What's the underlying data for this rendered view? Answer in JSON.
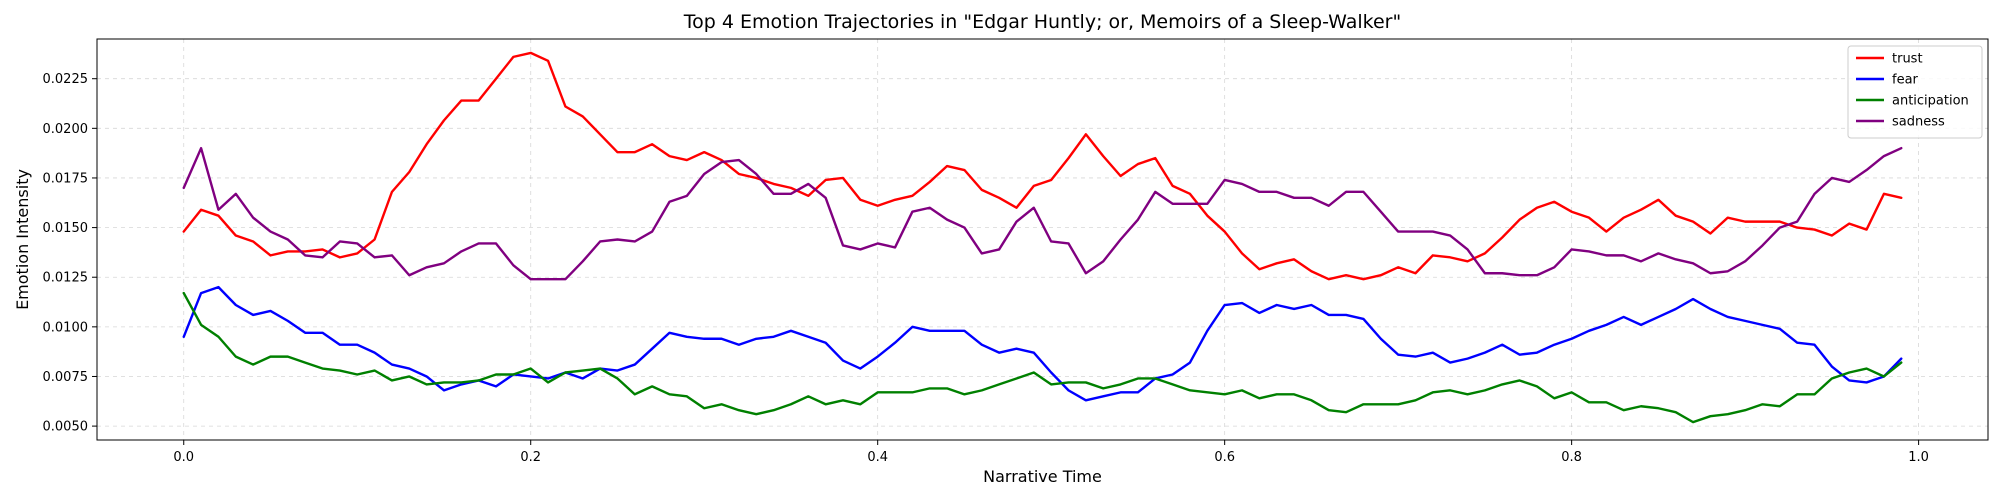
{
  "chart_data": {
    "type": "line",
    "title": "Top 4 Emotion Trajectories in \"Edgar Huntly; or, Memoirs of a Sleep-Walker\"",
    "xlabel": "Narrative Time",
    "ylabel": "Emotion Intensity",
    "xlim": [
      -0.05,
      1.04
    ],
    "ylim": [
      0.0043,
      0.0245
    ],
    "xticks": [
      0.0,
      0.2,
      0.4,
      0.6,
      0.8,
      1.0
    ],
    "xtick_labels": [
      "0.0",
      "0.2",
      "0.4",
      "0.6",
      "0.8",
      "1.0"
    ],
    "yticks": [
      0.005,
      0.0075,
      0.01,
      0.0125,
      0.015,
      0.0175,
      0.02,
      0.0225
    ],
    "ytick_labels": [
      "0.0050",
      "0.0075",
      "0.0100",
      "0.0125",
      "0.0150",
      "0.0175",
      "0.0200",
      "0.0225"
    ],
    "grid": true,
    "legend_position": "top-right",
    "x_start": 0.0,
    "x_step": 0.01,
    "series": [
      {
        "name": "trust",
        "color": "#ff0000",
        "values": [
          0.0148,
          0.0159,
          0.0156,
          0.0146,
          0.0143,
          0.0136,
          0.0138,
          0.0138,
          0.0139,
          0.0135,
          0.0137,
          0.0144,
          0.0168,
          0.0178,
          0.0192,
          0.0204,
          0.0214,
          0.0214,
          0.0225,
          0.0236,
          0.0238,
          0.0234,
          0.0211,
          0.0206,
          0.0197,
          0.0188,
          0.0188,
          0.0192,
          0.0186,
          0.0184,
          0.0188,
          0.0184,
          0.0177,
          0.0175,
          0.0172,
          0.017,
          0.0166,
          0.0174,
          0.0175,
          0.0164,
          0.0161,
          0.0164,
          0.0166,
          0.0173,
          0.0181,
          0.0179,
          0.0169,
          0.0165,
          0.016,
          0.0171,
          0.0174,
          0.0185,
          0.0197,
          0.0186,
          0.0176,
          0.0182,
          0.0185,
          0.0171,
          0.0167,
          0.0156,
          0.0148,
          0.0137,
          0.0129,
          0.0132,
          0.0134,
          0.0128,
          0.0124,
          0.0126,
          0.0124,
          0.0126,
          0.013,
          0.0127,
          0.0136,
          0.0135,
          0.0133,
          0.0137,
          0.0145,
          0.0154,
          0.016,
          0.0163,
          0.0158,
          0.0155,
          0.0148,
          0.0155,
          0.0159,
          0.0164,
          0.0156,
          0.0153,
          0.0147,
          0.0155,
          0.0153,
          0.0153,
          0.0153,
          0.015,
          0.0149,
          0.0146,
          0.0152,
          0.0149,
          0.0167,
          0.0165
        ]
      },
      {
        "name": "fear",
        "color": "#0000ff",
        "values": [
          0.0095,
          0.0117,
          0.012,
          0.0111,
          0.0106,
          0.0108,
          0.0103,
          0.0097,
          0.0097,
          0.0091,
          0.0091,
          0.0087,
          0.0081,
          0.0079,
          0.0075,
          0.0068,
          0.0071,
          0.0073,
          0.007,
          0.0076,
          0.0075,
          0.0074,
          0.0077,
          0.0074,
          0.0079,
          0.0078,
          0.0081,
          0.0089,
          0.0097,
          0.0095,
          0.0094,
          0.0094,
          0.0091,
          0.0094,
          0.0095,
          0.0098,
          0.0095,
          0.0092,
          0.0083,
          0.0079,
          0.0085,
          0.0092,
          0.01,
          0.0098,
          0.0098,
          0.0098,
          0.0091,
          0.0087,
          0.0089,
          0.0087,
          0.0077,
          0.0068,
          0.0063,
          0.0065,
          0.0067,
          0.0067,
          0.0074,
          0.0076,
          0.0082,
          0.0098,
          0.0111,
          0.0112,
          0.0107,
          0.0111,
          0.0109,
          0.0111,
          0.0106,
          0.0106,
          0.0104,
          0.0094,
          0.0086,
          0.0085,
          0.0087,
          0.0082,
          0.0084,
          0.0087,
          0.0091,
          0.0086,
          0.0087,
          0.0091,
          0.0094,
          0.0098,
          0.0101,
          0.0105,
          0.0101,
          0.0105,
          0.0109,
          0.0114,
          0.0109,
          0.0105,
          0.0103,
          0.0101,
          0.0099,
          0.0092,
          0.0091,
          0.008,
          0.0073,
          0.0072,
          0.0075,
          0.0084
        ]
      },
      {
        "name": "anticipation",
        "color": "#008000",
        "values": [
          0.0117,
          0.0101,
          0.0095,
          0.0085,
          0.0081,
          0.0085,
          0.0085,
          0.0082,
          0.0079,
          0.0078,
          0.0076,
          0.0078,
          0.0073,
          0.0075,
          0.0071,
          0.0072,
          0.0072,
          0.0073,
          0.0076,
          0.0076,
          0.0079,
          0.0072,
          0.0077,
          0.0078,
          0.0079,
          0.0074,
          0.0066,
          0.007,
          0.0066,
          0.0065,
          0.0059,
          0.0061,
          0.0058,
          0.0056,
          0.0058,
          0.0061,
          0.0065,
          0.0061,
          0.0063,
          0.0061,
          0.0067,
          0.0067,
          0.0067,
          0.0069,
          0.0069,
          0.0066,
          0.0068,
          0.0071,
          0.0074,
          0.0077,
          0.0071,
          0.0072,
          0.0072,
          0.0069,
          0.0071,
          0.0074,
          0.0074,
          0.0071,
          0.0068,
          0.0067,
          0.0066,
          0.0068,
          0.0064,
          0.0066,
          0.0066,
          0.0063,
          0.0058,
          0.0057,
          0.0061,
          0.0061,
          0.0061,
          0.0063,
          0.0067,
          0.0068,
          0.0066,
          0.0068,
          0.0071,
          0.0073,
          0.007,
          0.0064,
          0.0067,
          0.0062,
          0.0062,
          0.0058,
          0.006,
          0.0059,
          0.0057,
          0.0052,
          0.0055,
          0.0056,
          0.0058,
          0.0061,
          0.006,
          0.0066,
          0.0066,
          0.0074,
          0.0077,
          0.0079,
          0.0075,
          0.0082
        ]
      },
      {
        "name": "sadness",
        "color": "#800080",
        "values": [
          0.017,
          0.019,
          0.0159,
          0.0167,
          0.0155,
          0.0148,
          0.0144,
          0.0136,
          0.0135,
          0.0143,
          0.0142,
          0.0135,
          0.0136,
          0.0126,
          0.013,
          0.0132,
          0.0138,
          0.0142,
          0.0142,
          0.0131,
          0.0124,
          0.0124,
          0.0124,
          0.0133,
          0.0143,
          0.0144,
          0.0143,
          0.0148,
          0.0163,
          0.0166,
          0.0177,
          0.0183,
          0.0184,
          0.0177,
          0.0167,
          0.0167,
          0.0172,
          0.0165,
          0.0141,
          0.0139,
          0.0142,
          0.014,
          0.0158,
          0.016,
          0.0154,
          0.015,
          0.0137,
          0.0139,
          0.0153,
          0.016,
          0.0143,
          0.0142,
          0.0127,
          0.0133,
          0.0144,
          0.0154,
          0.0168,
          0.0162,
          0.0162,
          0.0162,
          0.0174,
          0.0172,
          0.0168,
          0.0168,
          0.0165,
          0.0165,
          0.0161,
          0.0168,
          0.0168,
          0.0158,
          0.0148,
          0.0148,
          0.0148,
          0.0146,
          0.0139,
          0.0127,
          0.0127,
          0.0126,
          0.0126,
          0.013,
          0.0139,
          0.0138,
          0.0136,
          0.0136,
          0.0133,
          0.0137,
          0.0134,
          0.0132,
          0.0127,
          0.0128,
          0.0133,
          0.0141,
          0.015,
          0.0153,
          0.0167,
          0.0175,
          0.0173,
          0.0179,
          0.0186,
          0.019
        ]
      }
    ]
  }
}
